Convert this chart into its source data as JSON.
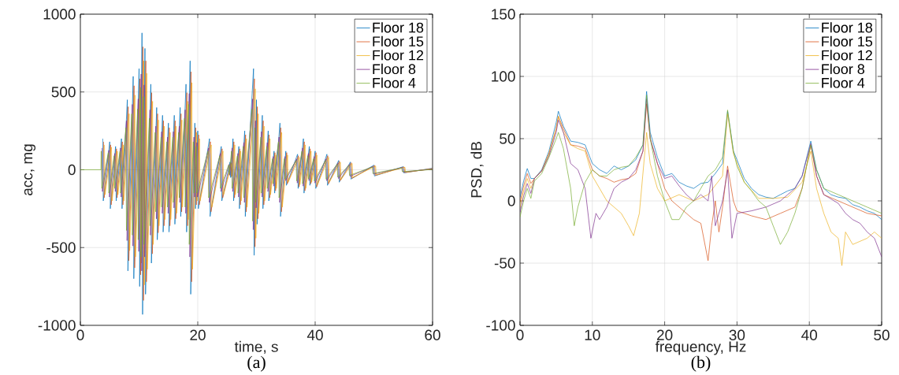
{
  "chart_data": [
    {
      "type": "line",
      "xlabel": "time, s",
      "ylabel": "acc, mg",
      "xlim": [
        0,
        60
      ],
      "ylim": [
        -1000,
        1000
      ],
      "xticks": [
        0,
        20,
        40,
        60
      ],
      "yticks": [
        -1000,
        -500,
        0,
        500,
        1000
      ],
      "grid": true,
      "legend": "top right",
      "annotations": [
        "(a)"
      ],
      "series": [
        {
          "name": "Floor 18",
          "color": "#0072bd",
          "x": [
            3.8,
            3.9,
            5,
            5.1,
            6,
            6.1,
            7,
            7.1,
            8,
            8.1,
            9,
            9.1,
            10,
            10.1,
            10.5,
            10.6,
            11,
            11.1,
            12,
            12.1,
            13,
            13.1,
            14,
            14.1,
            15,
            15.1,
            16,
            16.1,
            17,
            17.1,
            18,
            18.1,
            18.7,
            18.8,
            19.5,
            19.6,
            20,
            20.1,
            22,
            22.1,
            24,
            24.1,
            25.5,
            25.6,
            26,
            26.1,
            27,
            27.1,
            28,
            28.1,
            29.5,
            29.6,
            30,
            30.1,
            31,
            31.1,
            32,
            32.1,
            33,
            33.1,
            34,
            34.1,
            35,
            35.1,
            37,
            37.1,
            38,
            38.1,
            39,
            39.1,
            40,
            40.1,
            42,
            42.1,
            44,
            44.1,
            46,
            46.1,
            50,
            50.1,
            55,
            55.1,
            60
          ],
          "values": [
            200,
            -200,
            180,
            -250,
            150,
            -200,
            200,
            -250,
            450,
            -650,
            600,
            -700,
            650,
            -750,
            880,
            -930,
            780,
            -800,
            550,
            -600,
            400,
            -450,
            350,
            -400,
            300,
            -400,
            350,
            -350,
            400,
            -300,
            550,
            -400,
            700,
            -800,
            300,
            -250,
            250,
            -250,
            200,
            -300,
            150,
            -200,
            50,
            -50,
            200,
            -200,
            150,
            -250,
            250,
            -300,
            650,
            -550,
            450,
            -350,
            350,
            -250,
            250,
            -200,
            120,
            -150,
            300,
            -300,
            120,
            -100,
            100,
            -120,
            200,
            -150,
            150,
            -100,
            120,
            -120,
            100,
            -100,
            60,
            -80,
            50,
            -60,
            30,
            -40,
            20,
            -20,
            10
          ]
        },
        {
          "name": "Floor 15",
          "color": "#d95319",
          "x": [
            3.95,
            4.05,
            5.15,
            5.25,
            6.15,
            6.25,
            7.15,
            7.25,
            8.15,
            8.25,
            9.15,
            9.25,
            10.15,
            10.25,
            10.65,
            10.75,
            11.15,
            11.25,
            12.15,
            12.25,
            13.15,
            13.25,
            14.15,
            14.25,
            15.15,
            15.25,
            16.15,
            16.25,
            17.15,
            17.25,
            18.15,
            18.25,
            18.85,
            18.95,
            19.65,
            19.75,
            20.15,
            20.25,
            22.15,
            22.25,
            24.15,
            24.25,
            25.65,
            25.75,
            26.15,
            26.25,
            27.15,
            27.25,
            28.15,
            28.25,
            29.65,
            29.75,
            30.15,
            30.25,
            31.15,
            31.25,
            32.15,
            32.25,
            33.15,
            33.25,
            34.15,
            34.25,
            35.15,
            35.25,
            37.15,
            37.25,
            38.15,
            38.25,
            39.15,
            39.25,
            40.15,
            40.25,
            42.15,
            42.25,
            44.15,
            44.25,
            46.15,
            46.25,
            50.15,
            50.25,
            55.15,
            55.25,
            60
          ],
          "values": [
            180,
            -180,
            160,
            -225,
            135,
            -180,
            180,
            -225,
            405,
            -585,
            540,
            -630,
            585,
            -675,
            790,
            -840,
            700,
            -720,
            495,
            -540,
            360,
            -405,
            315,
            -360,
            270,
            -360,
            315,
            -315,
            360,
            -270,
            495,
            -360,
            630,
            -720,
            270,
            -225,
            225,
            -225,
            180,
            -270,
            135,
            -180,
            45,
            -45,
            180,
            -180,
            135,
            -225,
            225,
            -270,
            585,
            -495,
            405,
            -315,
            315,
            -225,
            225,
            -180,
            110,
            -135,
            270,
            -270,
            110,
            -90,
            90,
            -110,
            180,
            -135,
            135,
            -90,
            110,
            -110,
            90,
            -90,
            55,
            -70,
            45,
            -55,
            27,
            -36,
            18,
            -18,
            8
          ]
        },
        {
          "name": "Floor 12",
          "color": "#edb120",
          "x": [
            4.1,
            4.2,
            5.3,
            5.4,
            6.3,
            6.4,
            7.3,
            7.4,
            8.3,
            8.4,
            9.3,
            9.4,
            10.3,
            10.4,
            10.8,
            10.9,
            11.3,
            11.4,
            12.3,
            12.4,
            13.3,
            13.4,
            14.3,
            14.4,
            15.3,
            15.4,
            16.3,
            16.4,
            17.3,
            17.4,
            18.3,
            18.4,
            19,
            19.1,
            19.8,
            19.9,
            20.3,
            20.4,
            22.3,
            22.4,
            24.3,
            24.4,
            25.8,
            25.9,
            26.3,
            26.4,
            27.3,
            27.4,
            28.3,
            28.4,
            29.8,
            29.9,
            30.3,
            30.4,
            31.3,
            31.4,
            32.3,
            32.4,
            33.3,
            33.4,
            34.3,
            34.4,
            35.3,
            35.4,
            37.3,
            37.4,
            38.3,
            38.4,
            39.3,
            39.4,
            40.3,
            40.4,
            42.3,
            42.4,
            44.3,
            44.4,
            46.3,
            46.4,
            50.3,
            50.4,
            55.3,
            55.4,
            60
          ],
          "values": [
            160,
            -160,
            145,
            -200,
            120,
            -160,
            160,
            -200,
            360,
            -520,
            480,
            -560,
            520,
            -600,
            700,
            -740,
            620,
            -640,
            440,
            -480,
            320,
            -360,
            280,
            -320,
            240,
            -320,
            280,
            -280,
            320,
            -240,
            440,
            -320,
            560,
            -640,
            240,
            -200,
            200,
            -200,
            160,
            -240,
            120,
            -160,
            40,
            -40,
            160,
            -160,
            120,
            -200,
            200,
            -240,
            520,
            -440,
            360,
            -280,
            280,
            -200,
            200,
            -160,
            95,
            -120,
            240,
            -240,
            95,
            -80,
            80,
            -95,
            160,
            -120,
            120,
            -80,
            95,
            -95,
            80,
            -80,
            48,
            -64,
            40,
            -48,
            24,
            -32,
            16,
            -16,
            6
          ]
        },
        {
          "name": "Floor 8",
          "color": "#7e2f8e",
          "x": [
            3.65,
            3.75,
            4.85,
            4.95,
            5.85,
            5.95,
            6.85,
            6.95,
            7.85,
            7.95,
            8.85,
            8.95,
            9.85,
            9.95,
            10.35,
            10.45,
            10.85,
            10.95,
            11.85,
            11.95,
            12.85,
            12.95,
            13.85,
            13.95,
            14.85,
            14.95,
            15.85,
            15.95,
            16.85,
            16.95,
            17.85,
            17.95,
            18.55,
            18.65,
            19.35,
            19.45,
            19.85,
            19.95,
            21.85,
            21.95,
            23.85,
            23.95,
            25.35,
            25.45,
            25.85,
            25.95,
            26.85,
            26.95,
            27.85,
            27.95,
            29.35,
            29.45,
            29.85,
            29.95,
            30.85,
            30.95,
            31.85,
            31.95,
            32.85,
            32.95,
            33.85,
            33.95,
            34.85,
            34.95,
            36.85,
            36.95,
            37.85,
            37.95,
            38.85,
            38.95,
            39.85,
            39.95,
            41.85,
            41.95,
            43.85,
            43.95,
            45.85,
            45.95,
            49.85,
            49.95,
            54.85,
            54.95,
            60
          ],
          "values": [
            140,
            -140,
            125,
            -175,
            105,
            -140,
            140,
            -175,
            315,
            -455,
            420,
            -490,
            455,
            -525,
            615,
            -650,
            545,
            -560,
            385,
            -420,
            280,
            -315,
            245,
            -280,
            210,
            -280,
            245,
            -245,
            280,
            -210,
            385,
            -280,
            490,
            -560,
            210,
            -175,
            175,
            -175,
            140,
            -210,
            105,
            -140,
            35,
            -35,
            140,
            -140,
            105,
            -175,
            175,
            -210,
            455,
            -385,
            315,
            -245,
            245,
            -175,
            175,
            -140,
            85,
            -105,
            210,
            -210,
            85,
            -70,
            70,
            -85,
            140,
            -105,
            105,
            -70,
            85,
            -85,
            70,
            -70,
            42,
            -56,
            35,
            -42,
            21,
            -28,
            14,
            -14,
            4
          ]
        },
        {
          "name": "Floor 4",
          "color": "#77ac30",
          "x": [
            0,
            3.5,
            3.55,
            3.65,
            4.75,
            4.85,
            5.75,
            5.85,
            6.75,
            6.85,
            7.75,
            7.85,
            8.75,
            8.85,
            9.75,
            9.85,
            10.25,
            10.35,
            10.75,
            10.85,
            11.75,
            11.85,
            12.75,
            12.85,
            13.75,
            13.85,
            14.75,
            14.85,
            15.75,
            15.85,
            16.75,
            16.85,
            17.75,
            17.85,
            18.45,
            18.55,
            19.25,
            19.35,
            19.75,
            19.85,
            21.75,
            21.85,
            23.75,
            23.85,
            25.25,
            25.35,
            25.75,
            25.85,
            26.75,
            26.85,
            27.75,
            27.85,
            29.25,
            29.35,
            29.75,
            29.85,
            30.75,
            30.85,
            31.75,
            31.85,
            32.75,
            32.85,
            33.75,
            33.85,
            34.75,
            34.85,
            36.75,
            36.85,
            37.75,
            37.85,
            38.75,
            38.85,
            39.75,
            39.85,
            41.75,
            41.85,
            43.75,
            43.85,
            45.75,
            45.85,
            49.75,
            49.85,
            54.75,
            54.85,
            60
          ],
          "values": [
            0,
            0,
            120,
            -120,
            110,
            -150,
            90,
            -120,
            120,
            -150,
            270,
            -390,
            360,
            -420,
            390,
            -450,
            530,
            -560,
            470,
            -480,
            330,
            -360,
            240,
            -270,
            210,
            -240,
            180,
            -240,
            210,
            -210,
            240,
            -180,
            330,
            -240,
            420,
            -480,
            180,
            -150,
            150,
            -150,
            120,
            -180,
            90,
            -120,
            30,
            -30,
            120,
            -120,
            90,
            -150,
            150,
            -180,
            390,
            -330,
            270,
            -210,
            210,
            -150,
            150,
            -120,
            72,
            -90,
            180,
            -180,
            72,
            -60,
            60,
            -72,
            120,
            -90,
            90,
            -60,
            72,
            -72,
            60,
            -60,
            36,
            -48,
            30,
            -36,
            18,
            -24,
            12,
            -12,
            2
          ]
        }
      ]
    },
    {
      "type": "line",
      "xlabel": "frequency, Hz",
      "ylabel": "PSD, dB",
      "xlim": [
        0,
        50
      ],
      "ylim": [
        -100,
        150
      ],
      "xticks": [
        0,
        10,
        20,
        30,
        40,
        50
      ],
      "yticks": [
        -100,
        -50,
        0,
        50,
        100,
        150
      ],
      "grid": true,
      "legend": "top right",
      "annotations": [
        "(b)"
      ],
      "series": [
        {
          "name": "Floor 18",
          "color": "#0072bd",
          "x": [
            0,
            0.5,
            1,
            1.5,
            2,
            3,
            4,
            5,
            5.3,
            6,
            7,
            8,
            9,
            10,
            11,
            12,
            13,
            14,
            15,
            16,
            17,
            17.5,
            18,
            19,
            20,
            21,
            22,
            23,
            24,
            25,
            26,
            27,
            28,
            28.7,
            29.5,
            30,
            31,
            32,
            33,
            34,
            35,
            36,
            37,
            38,
            39,
            40.2,
            41,
            42,
            43,
            44,
            45,
            46,
            47,
            48,
            49,
            50
          ],
          "values": [
            3,
            16,
            26,
            18,
            18,
            25,
            40,
            63,
            72,
            60,
            48,
            47,
            45,
            30,
            25,
            22,
            28,
            25,
            28,
            33,
            45,
            88,
            55,
            35,
            20,
            22,
            15,
            12,
            10,
            14,
            15,
            22,
            30,
            72,
            40,
            33,
            18,
            10,
            5,
            3,
            2,
            5,
            8,
            10,
            20,
            48,
            25,
            10,
            5,
            3,
            2,
            -3,
            -5,
            -8,
            -10,
            -15
          ]
        },
        {
          "name": "Floor 15",
          "color": "#d95319",
          "x": [
            0,
            0.5,
            1,
            1.5,
            2,
            3,
            4,
            5,
            5.3,
            6,
            7,
            8,
            9,
            10,
            11,
            12,
            13,
            14,
            15,
            16,
            17,
            17.5,
            18,
            19,
            20,
            21,
            22,
            23,
            24,
            25,
            26,
            26.5,
            27,
            27.5,
            28,
            28.7,
            29.5,
            30,
            32,
            34,
            36,
            38,
            39,
            40.2,
            41,
            42,
            44,
            46,
            48,
            50
          ],
          "values": [
            -1,
            12,
            22,
            14,
            18,
            24,
            38,
            58,
            68,
            58,
            45,
            44,
            42,
            25,
            20,
            18,
            15,
            17,
            18,
            22,
            40,
            78,
            50,
            30,
            10,
            0,
            -5,
            -10,
            -15,
            -18,
            -48,
            -20,
            0,
            -25,
            -5,
            28,
            0,
            -8,
            -12,
            -15,
            -10,
            -5,
            10,
            45,
            20,
            5,
            0,
            -5,
            -10,
            -12
          ]
        },
        {
          "name": "Floor 12",
          "color": "#edb120",
          "x": [
            0,
            0.5,
            1,
            1.5,
            2,
            3,
            4,
            5,
            5.3,
            6,
            7,
            8,
            9,
            10,
            11,
            12,
            13,
            14,
            15,
            15.7,
            16.5,
            17.5,
            18,
            19,
            20,
            22,
            24,
            26,
            28,
            28.7,
            29.5,
            31,
            33,
            35,
            37,
            39,
            40.2,
            41,
            42,
            43,
            44,
            44.5,
            45,
            46,
            48,
            49,
            50
          ],
          "values": [
            -5,
            8,
            18,
            10,
            18,
            24,
            38,
            58,
            68,
            55,
            45,
            42,
            40,
            20,
            10,
            0,
            -5,
            -10,
            -20,
            -28,
            -10,
            55,
            30,
            10,
            0,
            5,
            0,
            5,
            20,
            70,
            38,
            15,
            2,
            2,
            3,
            15,
            40,
            10,
            -10,
            -25,
            -30,
            -52,
            -25,
            -35,
            -30,
            -25,
            -30
          ]
        },
        {
          "name": "Floor 8",
          "color": "#7e2f8e",
          "x": [
            0,
            0.5,
            1,
            1.5,
            2,
            3,
            4,
            5,
            5.3,
            6,
            7,
            8,
            9,
            9.8,
            10.5,
            11,
            12,
            13,
            14,
            15,
            16,
            17,
            17.5,
            18,
            19,
            20,
            21,
            22,
            23,
            24,
            25,
            26,
            26.5,
            27,
            28,
            28.7,
            29.3,
            30,
            32,
            34,
            36,
            38,
            39,
            40.2,
            41,
            42,
            44,
            45,
            46,
            47,
            48,
            49,
            50
          ],
          "values": [
            -9,
            4,
            14,
            6,
            18,
            24,
            36,
            55,
            65,
            55,
            30,
            25,
            10,
            -30,
            -10,
            -15,
            -5,
            10,
            15,
            18,
            25,
            40,
            82,
            50,
            30,
            18,
            20,
            12,
            5,
            0,
            5,
            0,
            20,
            -20,
            0,
            25,
            -30,
            -10,
            -8,
            -5,
            0,
            10,
            20,
            46,
            20,
            5,
            -2,
            -10,
            -15,
            -18,
            -25,
            -30,
            -45
          ]
        },
        {
          "name": "Floor 4",
          "color": "#77ac30",
          "x": [
            0,
            0.5,
            1,
            1.5,
            2,
            3,
            4,
            5,
            5.3,
            6,
            7,
            7.5,
            8,
            9,
            10,
            11,
            12,
            13,
            14,
            15,
            16,
            17,
            17.5,
            18,
            19,
            20,
            21,
            22,
            23,
            24,
            25,
            26,
            27,
            28,
            28.7,
            29.5,
            30,
            31,
            32,
            33,
            34,
            35,
            36,
            37,
            38,
            39,
            40.2,
            41,
            42,
            44,
            46,
            48,
            50
          ],
          "values": [
            -13,
            0,
            10,
            2,
            16,
            22,
            35,
            50,
            55,
            42,
            10,
            -20,
            -5,
            15,
            25,
            20,
            20,
            25,
            27,
            28,
            35,
            45,
            85,
            50,
            20,
            0,
            -15,
            -15,
            -5,
            0,
            10,
            20,
            25,
            35,
            73,
            40,
            28,
            15,
            8,
            0,
            -5,
            -20,
            -35,
            -25,
            -10,
            10,
            45,
            25,
            10,
            5,
            0,
            -5,
            -10
          ]
        }
      ]
    }
  ]
}
